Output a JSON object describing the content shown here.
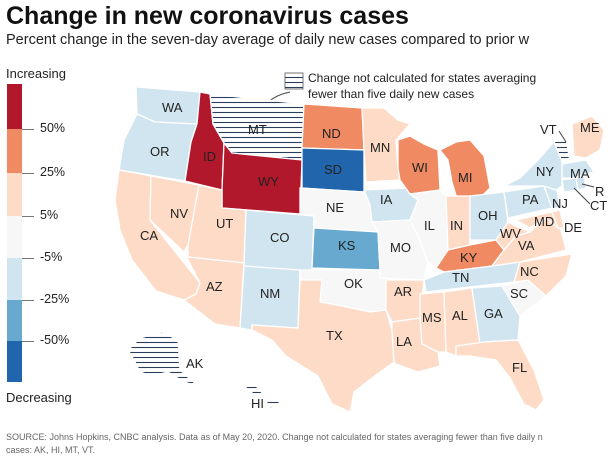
{
  "header": {
    "title": "Change in new coronavirus cases",
    "subtitle": "Percent change in the seven-day average of daily new cases compared to prior w"
  },
  "legend": {
    "top_label": "Increasing",
    "bottom_label": "Decreasing",
    "ticks": [
      "50%",
      "25%",
      "5%",
      "-5%",
      "-25%",
      "-50%"
    ],
    "colors": [
      "#b2182b",
      "#ef8a62",
      "#fddbc7",
      "#f7f7f7",
      "#d1e5f0",
      "#67a9cf",
      "#2166ac"
    ]
  },
  "note": {
    "text": "Change not calculated for states averaging fewer than five daily new cases"
  },
  "source": {
    "line1": "SOURCE: Johns Hopkins, CNBC analysis. Data as of May 20, 2020. Change not calculated for states averaging fewer than five daily n",
    "line2": "cases: AK, HI, MT, VT."
  },
  "states": {
    "WA": {
      "label": "WA",
      "category": "light-blue"
    },
    "OR": {
      "label": "OR",
      "category": "light-blue"
    },
    "CA": {
      "label": "CA",
      "category": "light-peach"
    },
    "NV": {
      "label": "NV",
      "category": "light-peach"
    },
    "ID": {
      "label": "ID",
      "category": "dark-red"
    },
    "MT": {
      "label": "MT",
      "category": "not-calculated"
    },
    "WY": {
      "label": "WY",
      "category": "dark-red"
    },
    "UT": {
      "label": "UT",
      "category": "light-peach"
    },
    "AZ": {
      "label": "AZ",
      "category": "light-peach"
    },
    "CO": {
      "label": "CO",
      "category": "light-blue"
    },
    "NM": {
      "label": "NM",
      "category": "light-blue"
    },
    "ND": {
      "label": "ND",
      "category": "orange"
    },
    "SD": {
      "label": "SD",
      "category": "dark-blue"
    },
    "NE": {
      "label": "NE",
      "category": "neutral"
    },
    "KS": {
      "label": "KS",
      "category": "mid-blue"
    },
    "OK": {
      "label": "OK",
      "category": "neutral"
    },
    "TX": {
      "label": "TX",
      "category": "light-peach"
    },
    "MN": {
      "label": "MN",
      "category": "light-peach"
    },
    "IA": {
      "label": "IA",
      "category": "light-blue"
    },
    "MO": {
      "label": "MO",
      "category": "neutral"
    },
    "AR": {
      "label": "AR",
      "category": "light-peach"
    },
    "LA": {
      "label": "LA",
      "category": "light-peach"
    },
    "WI": {
      "label": "WI",
      "category": "orange"
    },
    "IL": {
      "label": "IL",
      "category": "neutral"
    },
    "MI": {
      "label": "MI",
      "category": "orange"
    },
    "IN": {
      "label": "IN",
      "category": "light-peach"
    },
    "OH": {
      "label": "OH",
      "category": "light-blue"
    },
    "KY": {
      "label": "KY",
      "category": "orange"
    },
    "TN": {
      "label": "TN",
      "category": "light-blue"
    },
    "MS": {
      "label": "MS",
      "category": "light-peach"
    },
    "AL": {
      "label": "AL",
      "category": "light-peach"
    },
    "GA": {
      "label": "GA",
      "category": "light-blue"
    },
    "FL": {
      "label": "FL",
      "category": "light-peach"
    },
    "SC": {
      "label": "SC",
      "category": "neutral"
    },
    "NC": {
      "label": "NC",
      "category": "light-peach"
    },
    "VA": {
      "label": "VA",
      "category": "light-peach"
    },
    "WV": {
      "label": "WV",
      "category": "light-peach"
    },
    "PA": {
      "label": "PA",
      "category": "light-blue"
    },
    "NY": {
      "label": "NY",
      "category": "light-blue"
    },
    "MD": {
      "label": "MD",
      "category": "light-peach"
    },
    "DE": {
      "label": "DE",
      "category": "light-peach"
    },
    "NJ": {
      "label": "NJ",
      "category": "light-blue"
    },
    "VT": {
      "label": "VT",
      "category": "not-calculated"
    },
    "ME": {
      "label": "ME",
      "category": "light-peach"
    },
    "MA": {
      "label": "MA",
      "category": "light-blue"
    },
    "CT": {
      "label": "CT",
      "category": "light-blue"
    },
    "RI": {
      "label": "R",
      "category": "light-blue"
    },
    "AK": {
      "label": "AK",
      "category": "not-calculated"
    },
    "HI": {
      "label": "HI",
      "category": "not-calculated"
    }
  }
}
